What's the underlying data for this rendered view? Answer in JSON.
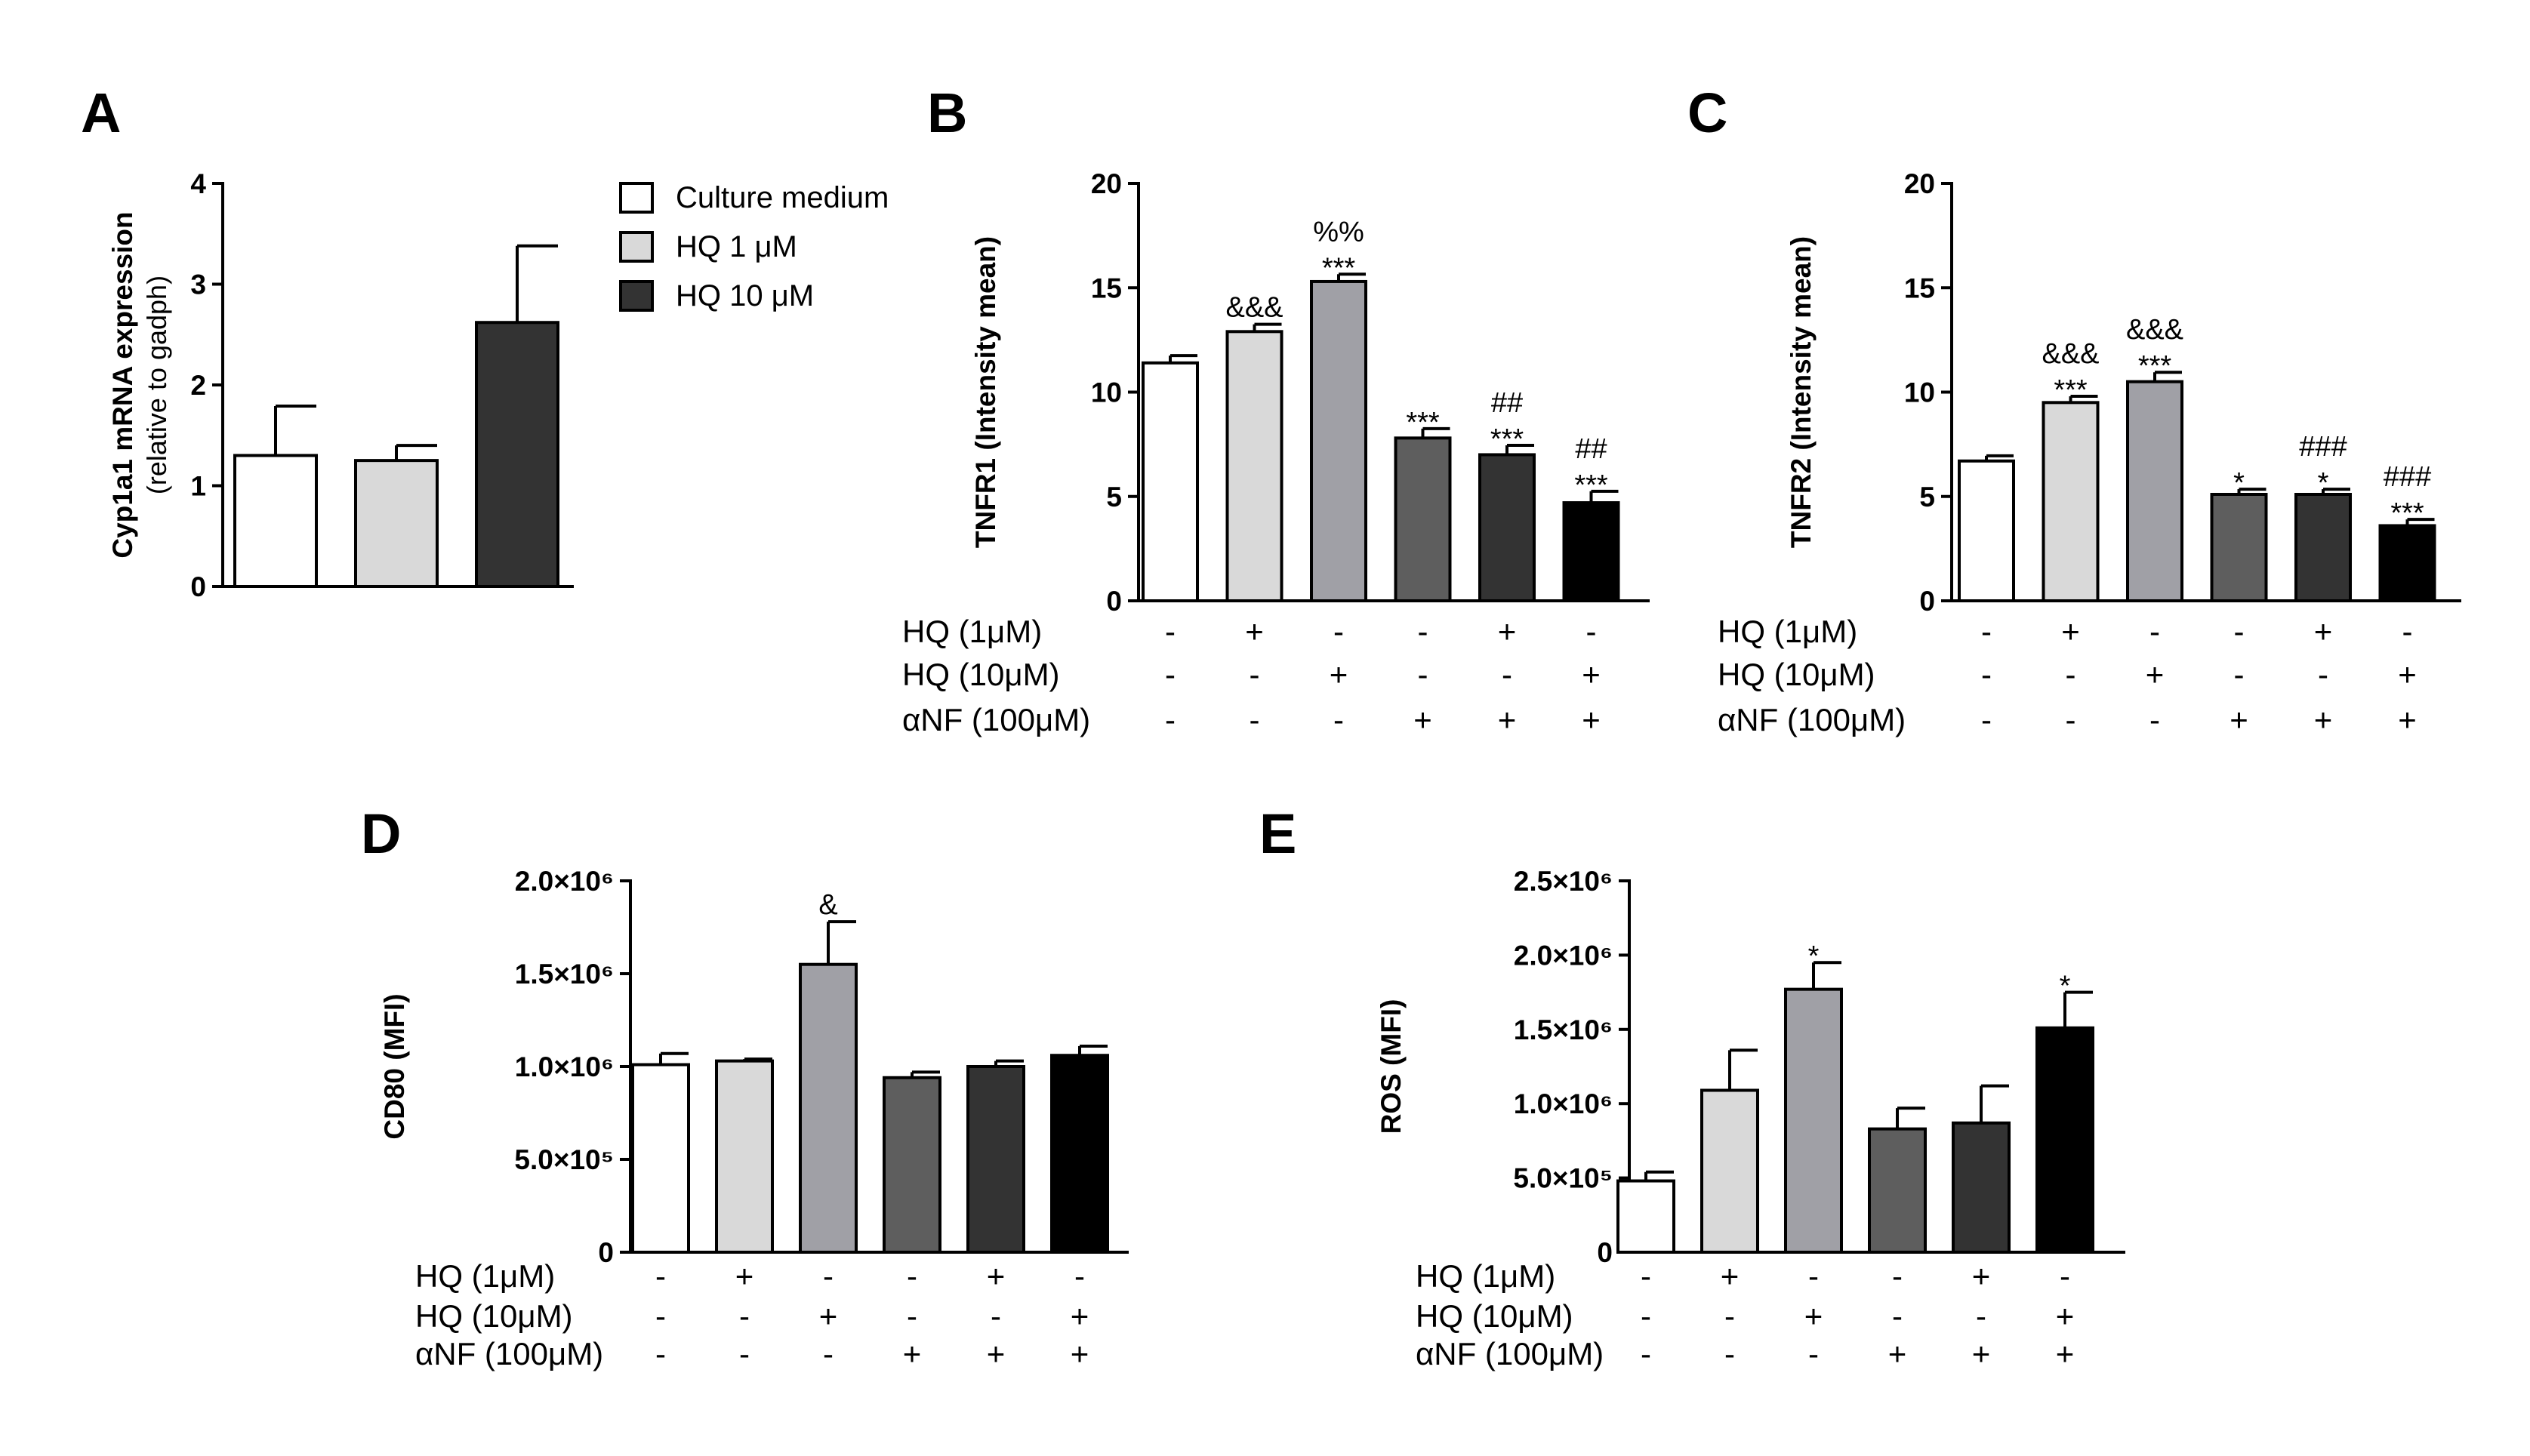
{
  "chart_data": [
    {
      "panel": "A",
      "type": "bar",
      "ylabel": "Cyp1a1 mRNA expression",
      "ylabel_sub": "(relative to gadph)",
      "ylim": [
        0,
        4
      ],
      "yticks": [
        "0",
        "1",
        "2",
        "3",
        "4"
      ],
      "colors": [
        "#ffffff",
        "#d9d9d9",
        "#333333"
      ],
      "values": [
        1.3,
        1.25,
        2.62
      ],
      "errors": [
        0.49,
        0.15,
        0.76
      ],
      "legend": [
        {
          "label": "Culture medium",
          "color": "#ffffff"
        },
        {
          "label": "HQ 1 μM",
          "color": "#d9d9d9"
        },
        {
          "label": "HQ 10 μM",
          "color": "#333333"
        }
      ]
    },
    {
      "panel": "B",
      "type": "bar",
      "ylabel": "TNFR1 (Intensity mean)",
      "ylim": [
        0,
        20
      ],
      "yticks": [
        "0",
        "5",
        "10",
        "15",
        "20"
      ],
      "colors": [
        "#ffffff",
        "#d9d9d9",
        "#a0a0a6",
        "#5e5e5e",
        "#333333",
        "#000000"
      ],
      "values": [
        11.4,
        12.9,
        15.3,
        7.8,
        7.0,
        4.7
      ],
      "errors": [
        0.35,
        0.35,
        0.35,
        0.45,
        0.45,
        0.55
      ],
      "annotations": [
        [],
        [
          "&&&"
        ],
        [
          "***",
          "%%"
        ],
        [
          "***"
        ],
        [
          "***",
          "##"
        ],
        [
          "***",
          "##"
        ]
      ],
      "treatments": {
        "rows": [
          "HQ (1μM)",
          "HQ (10μM)",
          "αNF (100μM)"
        ],
        "marks": [
          [
            "-",
            "+",
            "-",
            "-",
            "+",
            "-"
          ],
          [
            "-",
            "-",
            "+",
            "-",
            "-",
            "+"
          ],
          [
            "-",
            "-",
            "-",
            "+",
            "+",
            "+"
          ]
        ]
      }
    },
    {
      "panel": "C",
      "type": "bar",
      "ylabel": "TNFR2 (Intensity mean)",
      "ylim": [
        0,
        20
      ],
      "yticks": [
        "0",
        "5",
        "10",
        "15",
        "20"
      ],
      "colors": [
        "#ffffff",
        "#d9d9d9",
        "#a0a0a6",
        "#5e5e5e",
        "#333333",
        "#000000"
      ],
      "values": [
        6.7,
        9.5,
        10.5,
        5.1,
        5.1,
        3.6
      ],
      "errors": [
        0.25,
        0.3,
        0.45,
        0.25,
        0.25,
        0.3
      ],
      "annotations": [
        [],
        [
          "***",
          "&&&"
        ],
        [
          "***",
          "&&&"
        ],
        [
          "*"
        ],
        [
          "*",
          "###"
        ],
        [
          "***",
          "###"
        ]
      ],
      "treatments": {
        "rows": [
          "HQ (1μM)",
          "HQ (10μM)",
          "αNF (100μM)"
        ],
        "marks": [
          [
            "-",
            "+",
            "-",
            "-",
            "+",
            "-"
          ],
          [
            "-",
            "-",
            "+",
            "-",
            "-",
            "+"
          ],
          [
            "-",
            "-",
            "-",
            "+",
            "+",
            "+"
          ]
        ]
      }
    },
    {
      "panel": "D",
      "type": "bar",
      "ylabel": "CD80 (MFI)",
      "ylim": [
        0,
        2000000
      ],
      "yticks": [
        "0",
        "5.0×10⁵",
        "1.0×10⁶",
        "1.5×10⁶",
        "2.0×10⁶"
      ],
      "colors": [
        "#ffffff",
        "#d9d9d9",
        "#a0a0a6",
        "#5e5e5e",
        "#333333",
        "#000000"
      ],
      "values": [
        1010000,
        1030000,
        1550000,
        940000,
        1000000,
        1060000
      ],
      "errors": [
        60000,
        10000,
        230000,
        30000,
        30000,
        50000
      ],
      "annotations": [
        [],
        [],
        [
          "&"
        ],
        [],
        [],
        []
      ],
      "treatments": {
        "rows": [
          "HQ (1μM)",
          "HQ (10μM)",
          "αNF (100μM)"
        ],
        "marks": [
          [
            "-",
            "+",
            "-",
            "-",
            "+",
            "-"
          ],
          [
            "-",
            "-",
            "+",
            "-",
            "-",
            "+"
          ],
          [
            "-",
            "-",
            "-",
            "+",
            "+",
            "+"
          ]
        ]
      }
    },
    {
      "panel": "E",
      "type": "bar",
      "ylabel": "ROS (MFI)",
      "ylim": [
        0,
        2500000
      ],
      "yticks": [
        "0",
        "5.0×10⁵",
        "1.0×10⁶",
        "1.5×10⁶",
        "2.0×10⁶",
        "2.5×10⁶"
      ],
      "colors": [
        "#ffffff",
        "#d9d9d9",
        "#a0a0a6",
        "#5e5e5e",
        "#333333",
        "#000000"
      ],
      "values": [
        480000,
        1090000,
        1770000,
        830000,
        870000,
        1510000
      ],
      "errors": [
        60000,
        270000,
        180000,
        140000,
        250000,
        240000
      ],
      "annotations": [
        [],
        [],
        [
          "*"
        ],
        [],
        [],
        [
          "*"
        ]
      ],
      "treatments": {
        "rows": [
          "HQ (1μM)",
          "HQ (10μM)",
          "αNF (100μM)"
        ],
        "marks": [
          [
            "-",
            "+",
            "-",
            "-",
            "+",
            "-"
          ],
          [
            "-",
            "-",
            "+",
            "-",
            "-",
            "+"
          ],
          [
            "-",
            "-",
            "-",
            "+",
            "+",
            "+"
          ]
        ]
      }
    }
  ]
}
